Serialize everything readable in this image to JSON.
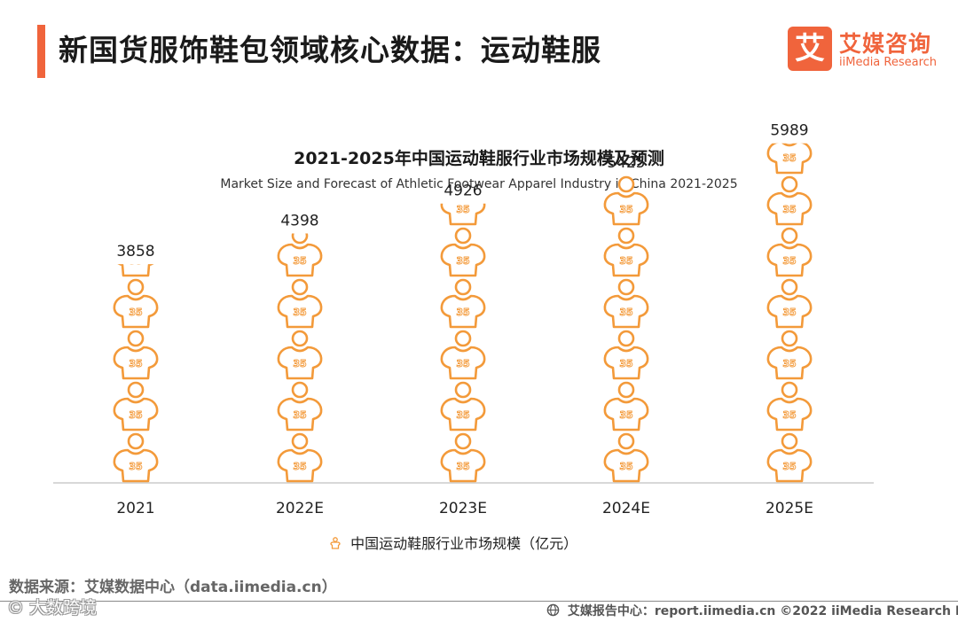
{
  "header": {
    "title": "新国货服饰鞋包领域核心数据：运动鞋服"
  },
  "logo": {
    "mark": "艾",
    "cn": "艾媒咨询",
    "en": "iiMedia Research"
  },
  "chart_data": {
    "type": "bar",
    "title": "2021-2025年中国运动鞋服行业市场规模及预测",
    "subtitle": "Market Size and Forecast of Athletic Footwear Apparel Industry in China 2021-2025",
    "categories": [
      "2021",
      "2022E",
      "2023E",
      "2024E",
      "2025E"
    ],
    "series": [
      {
        "name": "中国运动鞋服行业市场规模（亿元）",
        "values": [
          3858,
          4398,
          4926,
          5425,
          5989
        ],
        "labels": [
          "3858",
          "4398",
          "4926",
          "5425",
          "5989"
        ]
      }
    ],
    "pictograph_icon": "jersey-icon",
    "icon_text": "35",
    "ylim": [
      0,
      6400
    ],
    "grid": false,
    "legend_position": "bottom",
    "colors": {
      "icon_stroke": "#f39a3a",
      "icon_fill": "#ffffff",
      "baseline": "#cccccc"
    }
  },
  "source": "数据来源：艾媒数据中心（data.iimedia.cn）",
  "watermark": "© 大数跨境",
  "footer": {
    "text": "艾媒报告中心：report.iimedia.cn  ©2022  iiMedia Research  Inc",
    "icon": "globe-icon"
  },
  "colors": {
    "accent": "#f0643c",
    "brand": "#f0643c"
  }
}
